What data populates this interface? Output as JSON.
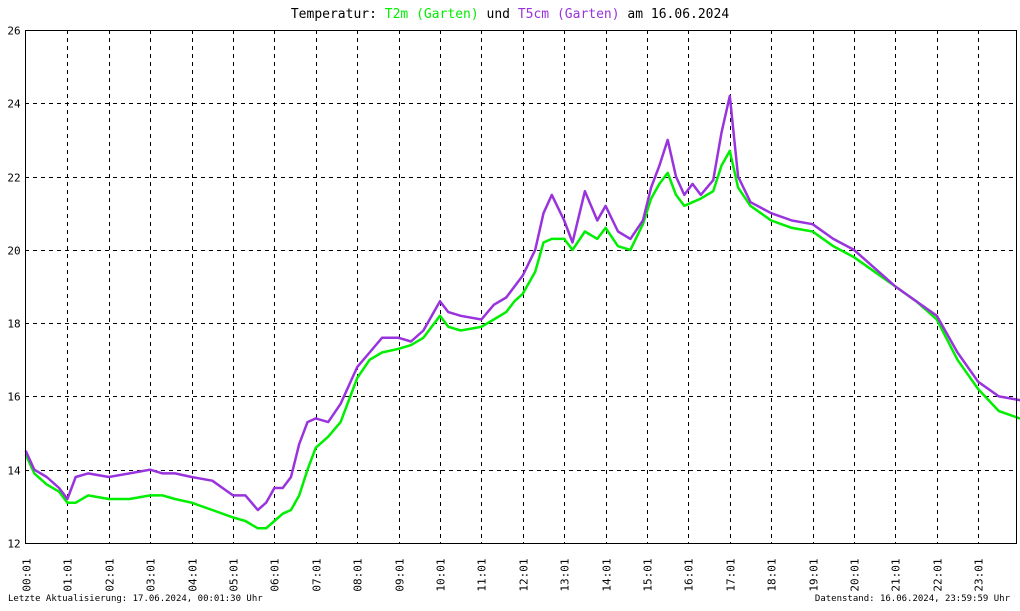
{
  "chart_data": {
    "type": "line",
    "title": {
      "prefix": "Temperatur: ",
      "series1": "T2m (Garten)",
      "middle": " und ",
      "series2": "T5cm (Garten)",
      "suffix": " am 16.06.2024"
    },
    "x_ticks": [
      "00:01",
      "01:01",
      "02:01",
      "03:01",
      "04:01",
      "05:01",
      "06:01",
      "07:01",
      "08:01",
      "09:01",
      "10:01",
      "11:01",
      "12:01",
      "13:01",
      "14:01",
      "15:01",
      "16:01",
      "17:01",
      "18:01",
      "19:01",
      "20:01",
      "21:01",
      "22:01",
      "23:01"
    ],
    "y_ticks": [
      12,
      14,
      16,
      18,
      20,
      22,
      24,
      26
    ],
    "ylim": [
      12,
      26
    ],
    "xlim_hours": [
      0,
      24
    ],
    "grid": true,
    "series": [
      {
        "name": "T2m (Garten)",
        "color": "#00ee00",
        "x": [
          0,
          0.2,
          0.5,
          0.8,
          1.0,
          1.2,
          1.5,
          2.0,
          2.5,
          3.0,
          3.3,
          3.6,
          4.0,
          4.5,
          5.0,
          5.3,
          5.6,
          5.8,
          6.0,
          6.2,
          6.4,
          6.6,
          6.8,
          7.0,
          7.3,
          7.6,
          8.0,
          8.3,
          8.6,
          9.0,
          9.3,
          9.6,
          10.0,
          10.2,
          10.5,
          11.0,
          11.3,
          11.6,
          11.8,
          12.0,
          12.3,
          12.5,
          12.7,
          13.0,
          13.2,
          13.5,
          13.8,
          14.0,
          14.3,
          14.6,
          14.9,
          15.1,
          15.3,
          15.5,
          15.7,
          15.9,
          16.1,
          16.3,
          16.6,
          16.8,
          17.0,
          17.2,
          17.5,
          18.0,
          18.5,
          19.0,
          19.5,
          20.0,
          20.5,
          21.0,
          21.5,
          22.0,
          22.5,
          23.0,
          23.5,
          24.0
        ],
        "y": [
          14.4,
          13.9,
          13.6,
          13.4,
          13.1,
          13.1,
          13.3,
          13.2,
          13.2,
          13.3,
          13.3,
          13.2,
          13.1,
          12.9,
          12.7,
          12.6,
          12.4,
          12.4,
          12.6,
          12.8,
          12.9,
          13.3,
          14.0,
          14.6,
          14.9,
          15.3,
          16.5,
          17.0,
          17.2,
          17.3,
          17.4,
          17.6,
          18.2,
          17.9,
          17.8,
          17.9,
          18.1,
          18.3,
          18.6,
          18.8,
          19.4,
          20.2,
          20.3,
          20.3,
          20.0,
          20.5,
          20.3,
          20.6,
          20.1,
          20.0,
          20.7,
          21.4,
          21.8,
          22.1,
          21.5,
          21.2,
          21.3,
          21.4,
          21.6,
          22.3,
          22.7,
          21.7,
          21.2,
          20.8,
          20.6,
          20.5,
          20.1,
          19.8,
          19.4,
          19.0,
          18.6,
          18.1,
          17.0,
          16.2,
          15.6,
          15.4
        ]
      },
      {
        "name": "T5cm (Garten)",
        "color": "#9933dd",
        "x": [
          0,
          0.2,
          0.5,
          0.8,
          1.0,
          1.2,
          1.5,
          2.0,
          2.5,
          3.0,
          3.3,
          3.6,
          4.0,
          4.5,
          5.0,
          5.3,
          5.6,
          5.8,
          6.0,
          6.2,
          6.4,
          6.6,
          6.8,
          7.0,
          7.3,
          7.6,
          8.0,
          8.3,
          8.6,
          9.0,
          9.3,
          9.6,
          10.0,
          10.2,
          10.5,
          11.0,
          11.3,
          11.6,
          11.8,
          12.0,
          12.3,
          12.5,
          12.7,
          13.0,
          13.2,
          13.5,
          13.8,
          14.0,
          14.3,
          14.6,
          14.9,
          15.1,
          15.3,
          15.5,
          15.7,
          15.9,
          16.1,
          16.3,
          16.6,
          16.8,
          17.0,
          17.2,
          17.5,
          18.0,
          18.5,
          19.0,
          19.5,
          20.0,
          20.5,
          21.0,
          21.5,
          22.0,
          22.5,
          23.0,
          23.5,
          24.0
        ],
        "y": [
          14.5,
          14.0,
          13.8,
          13.5,
          13.2,
          13.8,
          13.9,
          13.8,
          13.9,
          14.0,
          13.9,
          13.9,
          13.8,
          13.7,
          13.3,
          13.3,
          12.9,
          13.1,
          13.5,
          13.5,
          13.8,
          14.7,
          15.3,
          15.4,
          15.3,
          15.8,
          16.8,
          17.2,
          17.6,
          17.6,
          17.5,
          17.8,
          18.6,
          18.3,
          18.2,
          18.1,
          18.5,
          18.7,
          19.0,
          19.3,
          20.0,
          21.0,
          21.5,
          20.8,
          20.2,
          21.6,
          20.8,
          21.2,
          20.5,
          20.3,
          20.8,
          21.7,
          22.3,
          23.0,
          22.0,
          21.5,
          21.8,
          21.5,
          21.9,
          23.2,
          24.2,
          22.0,
          21.3,
          21.0,
          20.8,
          20.7,
          20.3,
          20.0,
          19.5,
          19.0,
          18.6,
          18.2,
          17.2,
          16.4,
          16.0,
          15.9
        ]
      }
    ]
  },
  "footer": {
    "left": "Letzte Aktualisierung: 17.06.2024, 00:01:30 Uhr",
    "right": "Datenstand: 16.06.2024, 23:59:59 Uhr"
  }
}
